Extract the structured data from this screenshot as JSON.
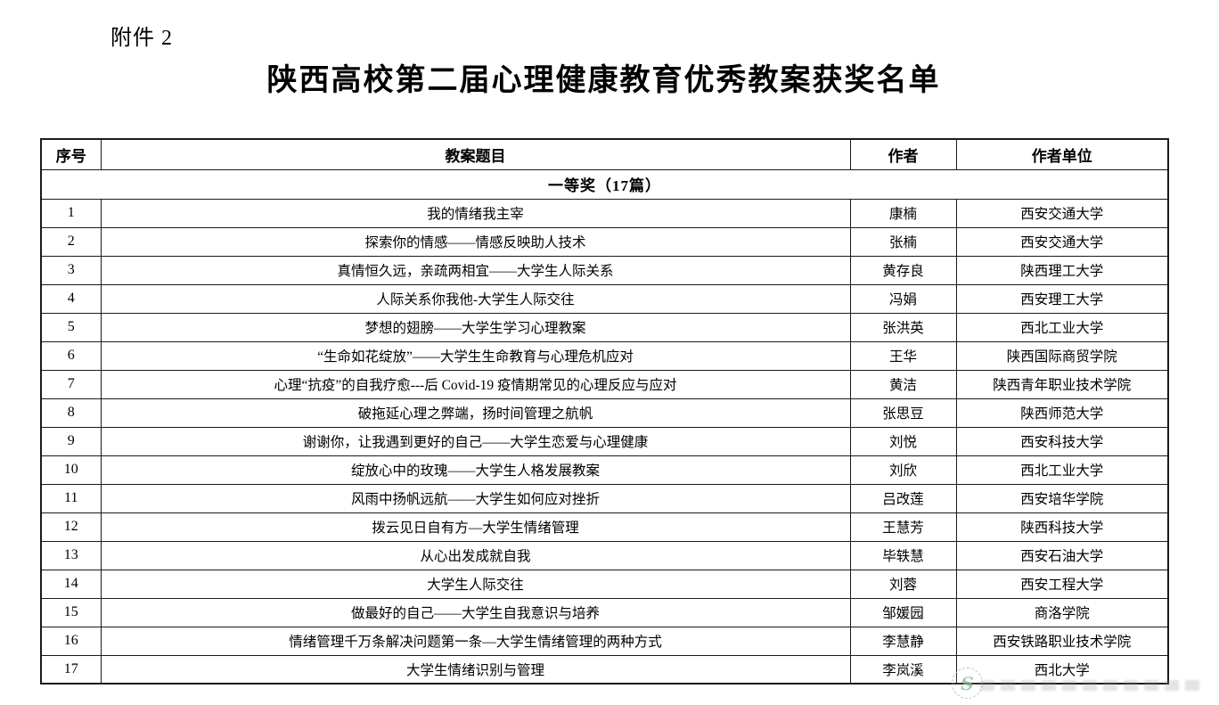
{
  "page": {
    "attachment_label": "附件 2",
    "title": "陕西高校第二届心理健康教育优秀教案获奖名单"
  },
  "table": {
    "headers": [
      "序号",
      "教案题目",
      "作者",
      "作者单位"
    ],
    "section_header": "一等奖（17篇）",
    "rows": [
      {
        "no": "1",
        "title": "我的情绪我主宰",
        "author": "康楠",
        "org": "西安交通大学"
      },
      {
        "no": "2",
        "title": "探索你的情感——情感反映助人技术",
        "author": "张楠",
        "org": "西安交通大学"
      },
      {
        "no": "3",
        "title": "真情恒久远，亲疏两相宜——大学生人际关系",
        "author": "黄存良",
        "org": "陕西理工大学"
      },
      {
        "no": "4",
        "title": "人际关系你我他-大学生人际交往",
        "author": "冯娟",
        "org": "西安理工大学"
      },
      {
        "no": "5",
        "title": "梦想的翅膀——大学生学习心理教案",
        "author": "张洪英",
        "org": "西北工业大学"
      },
      {
        "no": "6",
        "title": "“生命如花绽放”——大学生生命教育与心理危机应对",
        "author": "王华",
        "org": "陕西国际商贸学院"
      },
      {
        "no": "7",
        "title": "心理“抗疫”的自我疗愈---后 Covid-19 疫情期常见的心理反应与应对",
        "author": "黄洁",
        "org": "陕西青年职业技术学院"
      },
      {
        "no": "8",
        "title": "破拖延心理之弊端，扬时间管理之航帆",
        "author": "张思豆",
        "org": "陕西师范大学"
      },
      {
        "no": "9",
        "title": "谢谢你，让我遇到更好的自己——大学生恋爱与心理健康",
        "author": "刘悦",
        "org": "西安科技大学"
      },
      {
        "no": "10",
        "title": "绽放心中的玫瑰——大学生人格发展教案",
        "author": "刘欣",
        "org": "西北工业大学"
      },
      {
        "no": "11",
        "title": "风雨中扬帆远航——大学生如何应对挫折",
        "author": "吕改莲",
        "org": "西安培华学院"
      },
      {
        "no": "12",
        "title": "拨云见日自有方—大学生情绪管理",
        "author": "王慧芳",
        "org": "陕西科技大学"
      },
      {
        "no": "13",
        "title": "从心出发成就自我",
        "author": "毕轶慧",
        "org": "西安石油大学"
      },
      {
        "no": "14",
        "title": "大学生人际交往",
        "author": "刘蓉",
        "org": "西安工程大学"
      },
      {
        "no": "15",
        "title": "做最好的自己——大学生自我意识与培养",
        "author": "邹媛园",
        "org": "商洛学院"
      },
      {
        "no": "16",
        "title": "情绪管理千万条解决问题第一条—大学生情绪管理的两种方式",
        "author": "李慧静",
        "org": "西安铁路职业技术学院"
      },
      {
        "no": "17",
        "title": "大学生情绪识别与管理",
        "author": "李岚溪",
        "org": "西北大学"
      }
    ]
  },
  "watermark": {
    "glyph": "S"
  }
}
